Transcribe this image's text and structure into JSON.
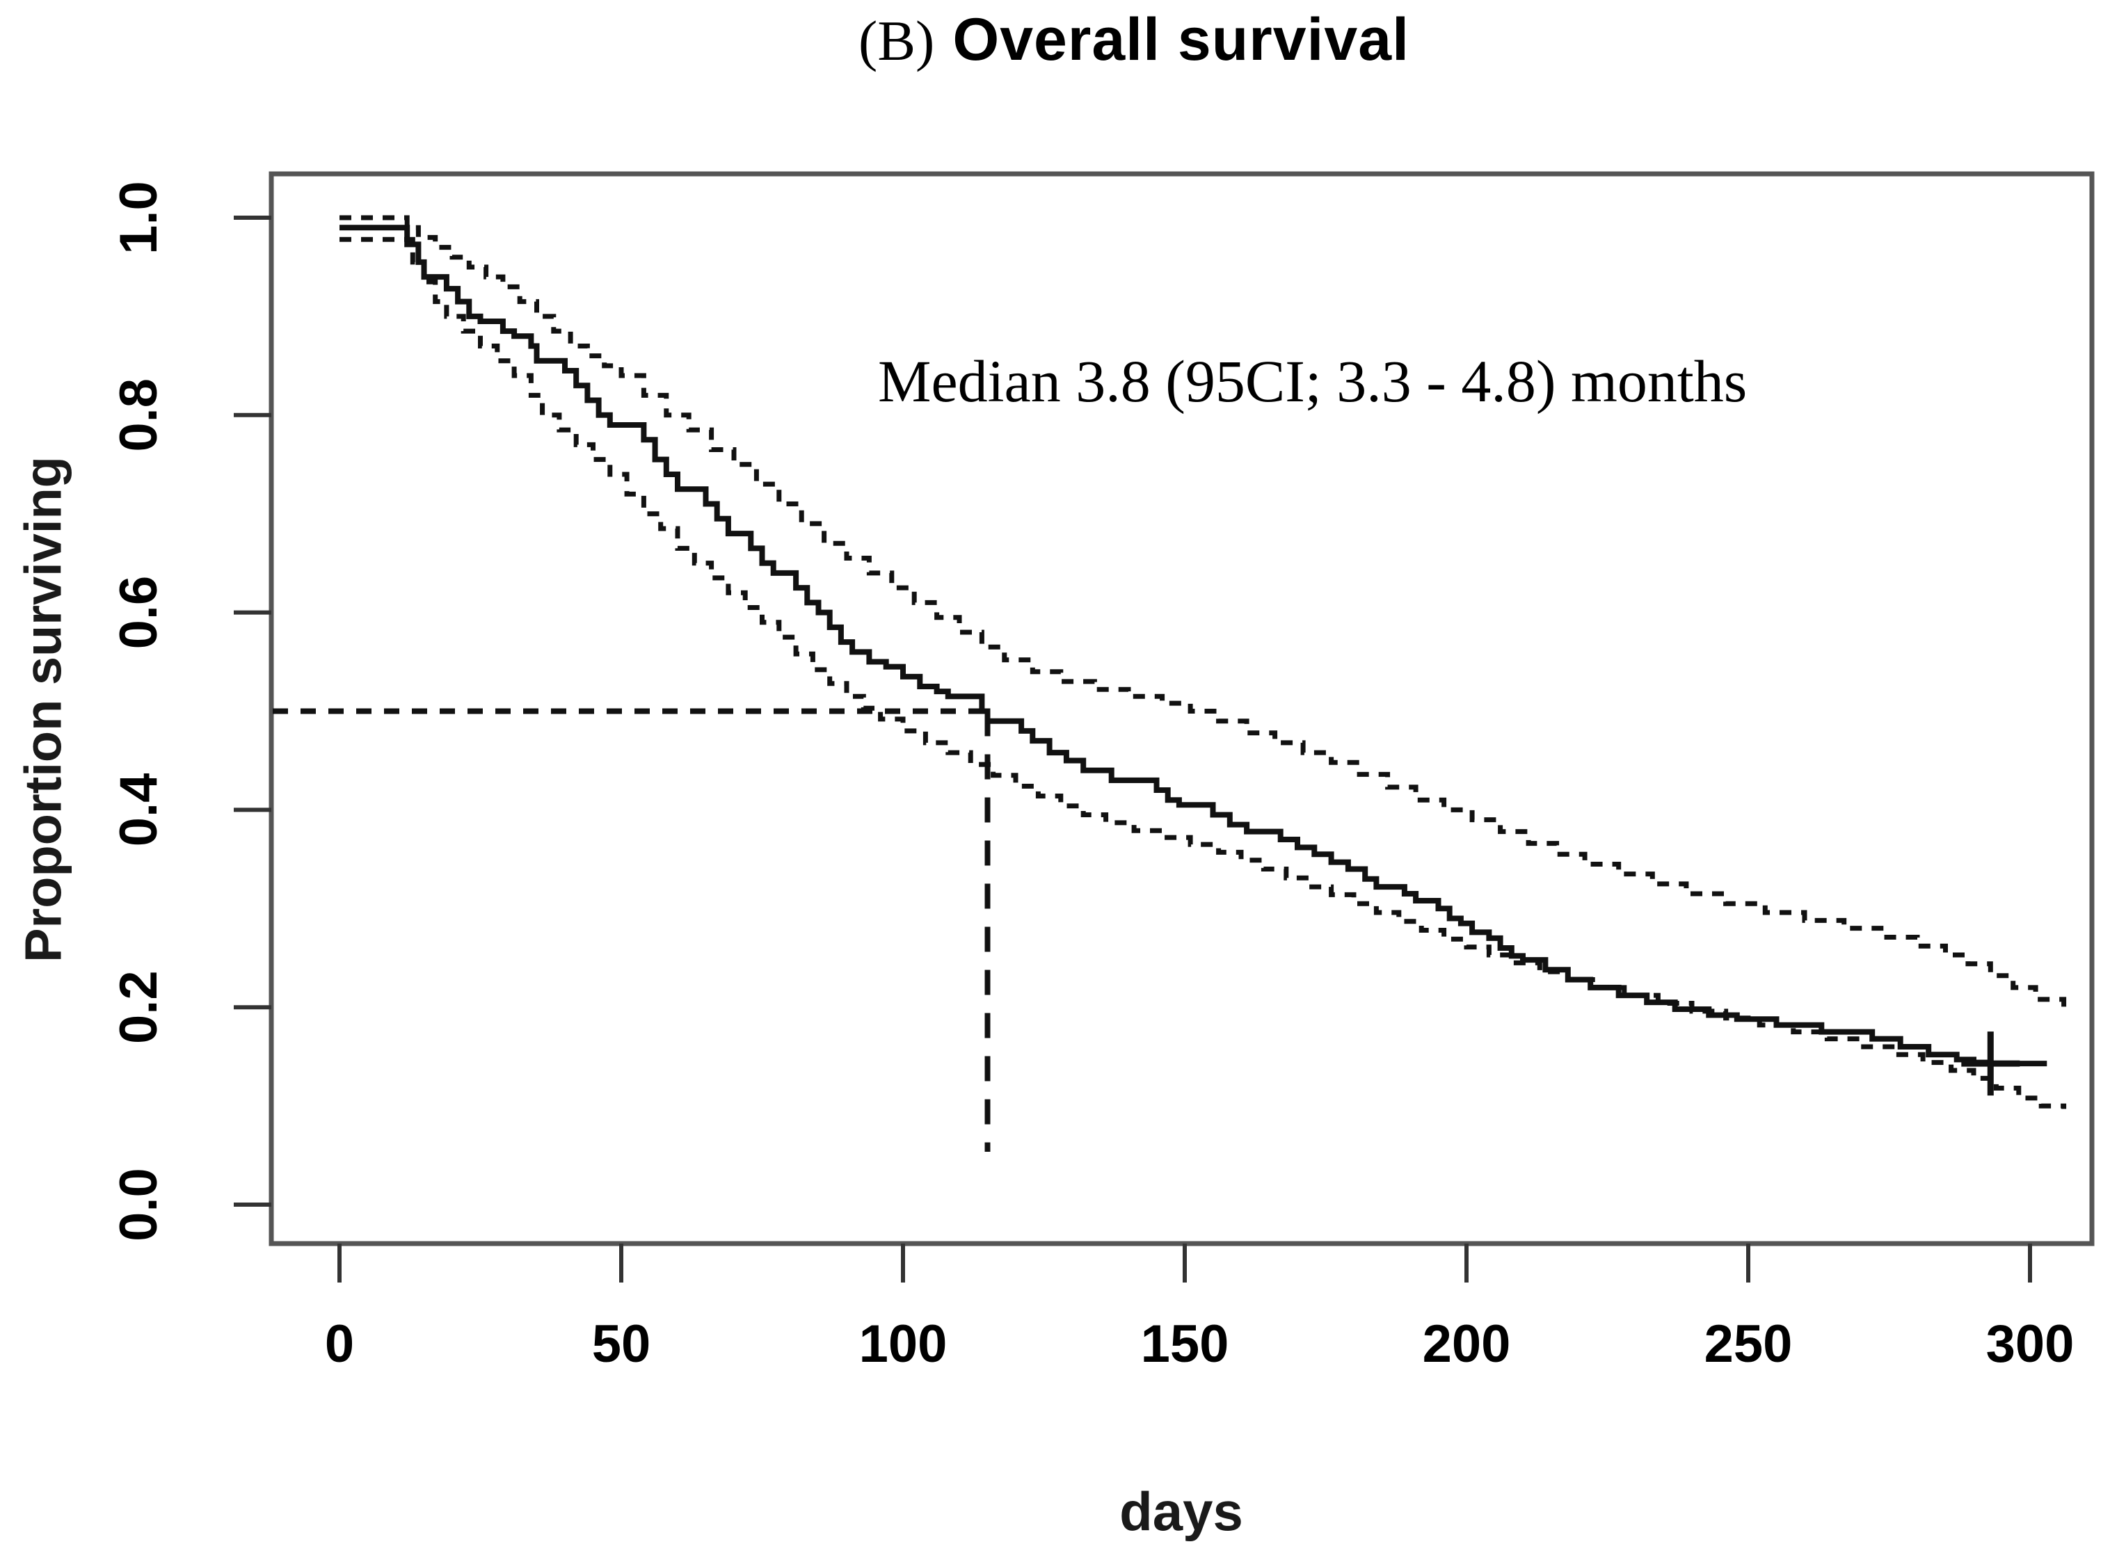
{
  "figure": {
    "title_prefix": "(B)",
    "title": "Overall survival",
    "annotation": "Median 3.8 (95CI; 3.3 - 4.8) months",
    "xlabel": "days",
    "ylabel": "Proportion surviving"
  },
  "chart_data": {
    "type": "line",
    "subtype": "kaplan-meier-step",
    "title": "(B) Overall survival",
    "xlabel": "days",
    "ylabel": "Proportion surviving",
    "xlim": [
      -12,
      311
    ],
    "ylim": [
      -0.04,
      1.044
    ],
    "grid": false,
    "legend_position": "none",
    "x_ticks": [
      0,
      50,
      100,
      150,
      200,
      250,
      300
    ],
    "y_ticks": [
      {
        "value": 1.0,
        "label": "1.0"
      },
      {
        "value": 0.8,
        "label": "0.8"
      },
      {
        "value": 0.6,
        "label": "0.6"
      },
      {
        "value": 0.4,
        "label": "0.4"
      },
      {
        "value": 0.2,
        "label": "0.2"
      },
      {
        "value": 0.0,
        "label": "0.0"
      }
    ],
    "median": {
      "days": 115,
      "survival": 0.5,
      "months": 3.8,
      "ci_low_months": 3.3,
      "ci_high_months": 4.8
    },
    "censor_marks": [
      {
        "day": 293,
        "survival": 0.143
      }
    ],
    "series": [
      {
        "name": "survival",
        "style": "solid",
        "points": [
          [
            0,
            0.99
          ],
          [
            12,
            0.973
          ],
          [
            14,
            0.955
          ],
          [
            15,
            0.94
          ],
          [
            19,
            0.928
          ],
          [
            21,
            0.915
          ],
          [
            23,
            0.9
          ],
          [
            25,
            0.895
          ],
          [
            29,
            0.885
          ],
          [
            31,
            0.88
          ],
          [
            34,
            0.87
          ],
          [
            35,
            0.855
          ],
          [
            40,
            0.845
          ],
          [
            42,
            0.83
          ],
          [
            44,
            0.815
          ],
          [
            46,
            0.8
          ],
          [
            48,
            0.79
          ],
          [
            54,
            0.775
          ],
          [
            56,
            0.755
          ],
          [
            58,
            0.74
          ],
          [
            60,
            0.725
          ],
          [
            65,
            0.71
          ],
          [
            67,
            0.695
          ],
          [
            69,
            0.68
          ],
          [
            73,
            0.665
          ],
          [
            75,
            0.65
          ],
          [
            77,
            0.64
          ],
          [
            81,
            0.625
          ],
          [
            83,
            0.61
          ],
          [
            85,
            0.6
          ],
          [
            87,
            0.585
          ],
          [
            89,
            0.57
          ],
          [
            91,
            0.56
          ],
          [
            94,
            0.55
          ],
          [
            97,
            0.545
          ],
          [
            100,
            0.535
          ],
          [
            103,
            0.525
          ],
          [
            106,
            0.52
          ],
          [
            108,
            0.515
          ],
          [
            114,
            0.5
          ],
          [
            115,
            0.49
          ],
          [
            121,
            0.48
          ],
          [
            123,
            0.47
          ],
          [
            126,
            0.458
          ],
          [
            129,
            0.45
          ],
          [
            132,
            0.44
          ],
          [
            137,
            0.43
          ],
          [
            145,
            0.42
          ],
          [
            147,
            0.41
          ],
          [
            149,
            0.405
          ],
          [
            155,
            0.395
          ],
          [
            158,
            0.385
          ],
          [
            161,
            0.378
          ],
          [
            167,
            0.37
          ],
          [
            170,
            0.362
          ],
          [
            173,
            0.355
          ],
          [
            176,
            0.347
          ],
          [
            179,
            0.34
          ],
          [
            182,
            0.33
          ],
          [
            184,
            0.322
          ],
          [
            189,
            0.315
          ],
          [
            191,
            0.308
          ],
          [
            195,
            0.3
          ],
          [
            197,
            0.29
          ],
          [
            199,
            0.285
          ],
          [
            201,
            0.276
          ],
          [
            204,
            0.27
          ],
          [
            206,
            0.26
          ],
          [
            208,
            0.252
          ],
          [
            210,
            0.248
          ],
          [
            214,
            0.238
          ],
          [
            218,
            0.228
          ],
          [
            222,
            0.22
          ],
          [
            227,
            0.212
          ],
          [
            232,
            0.205
          ],
          [
            237,
            0.198
          ],
          [
            243,
            0.192
          ],
          [
            248,
            0.188
          ],
          [
            255,
            0.182
          ],
          [
            263,
            0.175
          ],
          [
            272,
            0.168
          ],
          [
            277,
            0.16
          ],
          [
            282,
            0.152
          ],
          [
            287,
            0.147
          ],
          [
            290,
            0.144
          ],
          [
            293,
            0.143
          ],
          [
            303,
            0.143
          ]
        ]
      },
      {
        "name": "upper_95ci",
        "style": "dashed",
        "points": [
          [
            0,
            1.0
          ],
          [
            12,
            0.99
          ],
          [
            14,
            0.98
          ],
          [
            17,
            0.97
          ],
          [
            20,
            0.96
          ],
          [
            23,
            0.95
          ],
          [
            26,
            0.94
          ],
          [
            29,
            0.93
          ],
          [
            32,
            0.915
          ],
          [
            35,
            0.9
          ],
          [
            38,
            0.885
          ],
          [
            41,
            0.87
          ],
          [
            44,
            0.86
          ],
          [
            47,
            0.85
          ],
          [
            50,
            0.84
          ],
          [
            54,
            0.82
          ],
          [
            58,
            0.8
          ],
          [
            62,
            0.785
          ],
          [
            66,
            0.765
          ],
          [
            70,
            0.75
          ],
          [
            74,
            0.73
          ],
          [
            78,
            0.71
          ],
          [
            82,
            0.69
          ],
          [
            86,
            0.67
          ],
          [
            90,
            0.655
          ],
          [
            94,
            0.64
          ],
          [
            98,
            0.625
          ],
          [
            102,
            0.61
          ],
          [
            106,
            0.595
          ],
          [
            110,
            0.58
          ],
          [
            114,
            0.565
          ],
          [
            118,
            0.552
          ],
          [
            123,
            0.54
          ],
          [
            128,
            0.53
          ],
          [
            134,
            0.522
          ],
          [
            140,
            0.515
          ],
          [
            146,
            0.508
          ],
          [
            151,
            0.5
          ],
          [
            156,
            0.49
          ],
          [
            161,
            0.478
          ],
          [
            166,
            0.468
          ],
          [
            171,
            0.458
          ],
          [
            176,
            0.448
          ],
          [
            181,
            0.436
          ],
          [
            186,
            0.423
          ],
          [
            191,
            0.41
          ],
          [
            196,
            0.4
          ],
          [
            201,
            0.39
          ],
          [
            206,
            0.378
          ],
          [
            211,
            0.366
          ],
          [
            216,
            0.355
          ],
          [
            221,
            0.345
          ],
          [
            227,
            0.335
          ],
          [
            233,
            0.325
          ],
          [
            239,
            0.315
          ],
          [
            246,
            0.305
          ],
          [
            253,
            0.296
          ],
          [
            260,
            0.288
          ],
          [
            267,
            0.28
          ],
          [
            274,
            0.271
          ],
          [
            280,
            0.262
          ],
          [
            285,
            0.253
          ],
          [
            289,
            0.244
          ],
          [
            293,
            0.232
          ],
          [
            297,
            0.22
          ],
          [
            301,
            0.208
          ],
          [
            306,
            0.2
          ]
        ]
      },
      {
        "name": "lower_95ci",
        "style": "dashed",
        "points": [
          [
            0,
            0.978
          ],
          [
            13,
            0.955
          ],
          [
            15,
            0.935
          ],
          [
            17,
            0.915
          ],
          [
            19,
            0.9
          ],
          [
            22,
            0.885
          ],
          [
            25,
            0.87
          ],
          [
            28,
            0.855
          ],
          [
            31,
            0.84
          ],
          [
            34,
            0.82
          ],
          [
            36,
            0.8
          ],
          [
            39,
            0.785
          ],
          [
            42,
            0.77
          ],
          [
            45,
            0.755
          ],
          [
            48,
            0.74
          ],
          [
            51,
            0.72
          ],
          [
            54,
            0.7
          ],
          [
            57,
            0.685
          ],
          [
            60,
            0.665
          ],
          [
            63,
            0.65
          ],
          [
            66,
            0.635
          ],
          [
            69,
            0.62
          ],
          [
            72,
            0.605
          ],
          [
            75,
            0.59
          ],
          [
            78,
            0.575
          ],
          [
            81,
            0.558
          ],
          [
            84,
            0.542
          ],
          [
            87,
            0.528
          ],
          [
            90,
            0.515
          ],
          [
            93,
            0.503
          ],
          [
            96,
            0.492
          ],
          [
            100,
            0.48
          ],
          [
            104,
            0.468
          ],
          [
            108,
            0.458
          ],
          [
            112,
            0.446
          ],
          [
            116,
            0.435
          ],
          [
            120,
            0.424
          ],
          [
            124,
            0.414
          ],
          [
            128,
            0.404
          ],
          [
            132,
            0.395
          ],
          [
            136,
            0.387
          ],
          [
            141,
            0.379
          ],
          [
            146,
            0.372
          ],
          [
            151,
            0.365
          ],
          [
            156,
            0.357
          ],
          [
            160,
            0.349
          ],
          [
            164,
            0.34
          ],
          [
            168,
            0.331
          ],
          [
            172,
            0.322
          ],
          [
            176,
            0.314
          ],
          [
            180,
            0.305
          ],
          [
            184,
            0.296
          ],
          [
            188,
            0.287
          ],
          [
            192,
            0.278
          ],
          [
            196,
            0.269
          ],
          [
            200,
            0.261
          ],
          [
            204,
            0.253
          ],
          [
            208,
            0.245
          ],
          [
            213,
            0.236
          ],
          [
            218,
            0.228
          ],
          [
            223,
            0.22
          ],
          [
            228,
            0.212
          ],
          [
            234,
            0.204
          ],
          [
            240,
            0.196
          ],
          [
            246,
            0.189
          ],
          [
            252,
            0.182
          ],
          [
            258,
            0.175
          ],
          [
            264,
            0.168
          ],
          [
            270,
            0.16
          ],
          [
            276,
            0.152
          ],
          [
            281,
            0.144
          ],
          [
            286,
            0.136
          ],
          [
            290,
            0.128
          ],
          [
            294,
            0.118
          ],
          [
            298,
            0.108
          ],
          [
            302,
            0.1
          ],
          [
            306,
            0.097
          ]
        ]
      }
    ]
  }
}
